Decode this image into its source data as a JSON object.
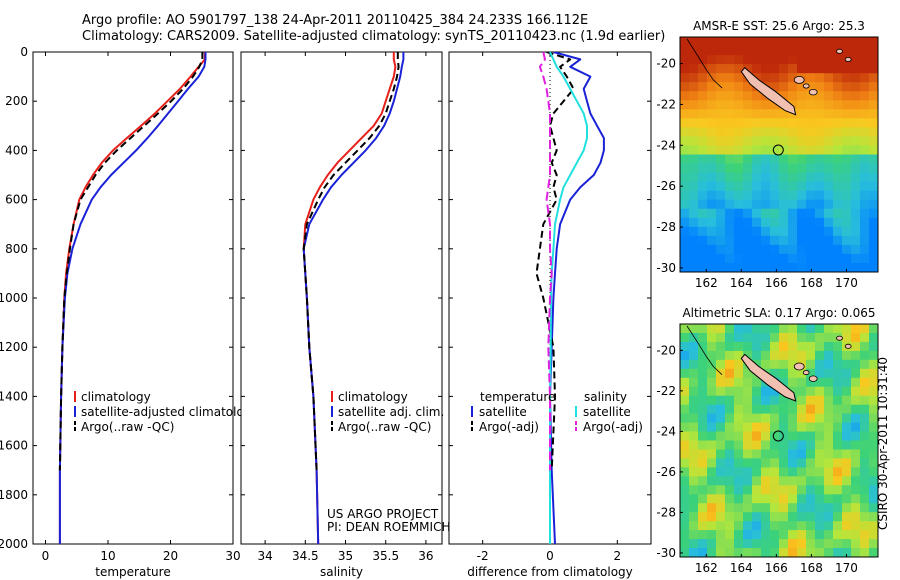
{
  "header": {
    "line1": "Argo profile: AO 5901797_138 24-Apr-2011 20110425_384 24.233S 166.112E",
    "line2": "Climatology: CARS2009. Satellite-adjusted climatology: synTS_20110423.nc (1.9d earlier)"
  },
  "side_note": "CSIRO 30-Apr-2011 10:31:40",
  "credits": {
    "line1": "US ARGO PROJECT",
    "line2": "PI: DEAN ROEMMICH"
  },
  "colors": {
    "climatology": "#e8201a",
    "satellite": "#1a22d8",
    "argo": "#000000",
    "sal_satellite": "#20e0e0",
    "sal_argo": "#e020e0",
    "land": "#f2c0b0"
  },
  "chart_data": [
    {
      "type": "line",
      "xlabel": "temperature",
      "xlim": [
        -2,
        30
      ],
      "ylim": [
        0,
        2000
      ],
      "xticks": [
        0,
        10,
        20,
        30
      ],
      "yticks": [
        0,
        200,
        400,
        600,
        800,
        1000,
        1200,
        1400,
        1600,
        1800,
        2000
      ],
      "legend": [
        "climatology",
        "satellite-adjusted climatology",
        "Argo(..raw -QC)"
      ],
      "series": [
        {
          "name": "climatology",
          "color": "#e8201a",
          "dash": "",
          "x": [
            25.5,
            25.5,
            24.5,
            23.2,
            21.5,
            19.5,
            17.5,
            15.3,
            13,
            10.8,
            9,
            7.6,
            6.4,
            5.4,
            4.5,
            3.8,
            3.3,
            3,
            2.7,
            2.5,
            2.3,
            2.3
          ],
          "y": [
            0,
            30,
            60,
            100,
            150,
            200,
            250,
            300,
            350,
            400,
            450,
            500,
            550,
            600,
            700,
            800,
            900,
            1000,
            1200,
            1400,
            1700,
            2000
          ]
        },
        {
          "name": "satellite-adjusted climatology",
          "color": "#1a22d8",
          "dash": "",
          "x": [
            25.6,
            25.6,
            25.4,
            24.5,
            22.8,
            21.2,
            19.6,
            18,
            16.3,
            14.5,
            12.5,
            10.5,
            8.8,
            7.4,
            5.6,
            4.3,
            3.5,
            3.1,
            2.7,
            2.5,
            2.3,
            2.3
          ],
          "y": [
            0,
            30,
            60,
            100,
            150,
            200,
            250,
            300,
            350,
            400,
            450,
            500,
            550,
            600,
            700,
            800,
            900,
            1000,
            1200,
            1400,
            1700,
            2000
          ]
        },
        {
          "name": "Argo(..raw -QC)",
          "color": "#000000",
          "dash": "7,4",
          "x": [
            25.1,
            25.1,
            24.6,
            23.6,
            22,
            20.1,
            18,
            15.8,
            13.6,
            11.4,
            9.5,
            8,
            6.8,
            5.6,
            4.5,
            3.9,
            3.4,
            3,
            2.7,
            2.5,
            2.3
          ],
          "y": [
            0,
            30,
            60,
            100,
            150,
            200,
            250,
            300,
            350,
            400,
            450,
            500,
            550,
            600,
            700,
            800,
            900,
            1000,
            1200,
            1400,
            1700
          ]
        }
      ]
    },
    {
      "type": "line",
      "xlabel": "salinity",
      "xlim": [
        33.7,
        36.2
      ],
      "ylim": [
        0,
        2000
      ],
      "xticks": [
        34,
        34.5,
        35,
        35.5,
        36
      ],
      "legend": [
        "climatology",
        "satellite adj. clim.",
        "Argo(..raw -QC)"
      ],
      "series": [
        {
          "name": "climatology",
          "color": "#e8201a",
          "dash": "",
          "x": [
            35.6,
            35.6,
            35.62,
            35.6,
            35.55,
            35.5,
            35.45,
            35.35,
            35.2,
            35.05,
            34.9,
            34.78,
            34.68,
            34.6,
            34.5,
            34.48,
            34.5,
            34.52,
            34.55,
            34.6,
            34.64,
            34.66
          ],
          "y": [
            0,
            30,
            60,
            100,
            150,
            200,
            250,
            300,
            350,
            400,
            450,
            500,
            550,
            600,
            700,
            800,
            900,
            1000,
            1200,
            1400,
            1700,
            2000
          ]
        },
        {
          "name": "satellite adj. clim.",
          "color": "#1a22d8",
          "dash": "",
          "x": [
            35.72,
            35.72,
            35.7,
            35.68,
            35.64,
            35.6,
            35.55,
            35.48,
            35.38,
            35.25,
            35.1,
            34.95,
            34.82,
            34.72,
            34.55,
            34.48,
            34.5,
            34.52,
            34.55,
            34.6,
            34.64,
            34.66
          ],
          "y": [
            0,
            30,
            60,
            100,
            150,
            200,
            250,
            300,
            350,
            400,
            450,
            500,
            550,
            600,
            700,
            800,
            900,
            1000,
            1200,
            1400,
            1700,
            2000
          ]
        },
        {
          "name": "Argo(..raw -QC)",
          "color": "#000000",
          "dash": "7,4",
          "x": [
            35.65,
            35.65,
            35.66,
            35.64,
            35.6,
            35.55,
            35.5,
            35.42,
            35.3,
            35.15,
            35,
            34.85,
            34.74,
            34.66,
            34.52,
            34.48,
            34.5,
            34.52,
            34.55,
            34.6,
            34.64
          ],
          "y": [
            0,
            30,
            60,
            100,
            150,
            200,
            250,
            300,
            350,
            400,
            450,
            500,
            550,
            600,
            700,
            800,
            900,
            1000,
            1200,
            1400,
            1700
          ]
        }
      ]
    },
    {
      "type": "line",
      "xlabel": "difference from climatology",
      "xlim": [
        -3,
        3
      ],
      "ylim": [
        0,
        2000
      ],
      "xticks": [
        -2,
        0,
        2
      ],
      "legend": [
        "temperature",
        "satellite",
        "Argo(-adj)",
        "salinity",
        "satellite",
        "Argo(-adj)"
      ],
      "series": [
        {
          "name": "temperature satellite",
          "color": "#1a22d8",
          "dash": "",
          "x": [
            0.1,
            0.9,
            0.6,
            1.2,
            1,
            1.1,
            1.2,
            1.4,
            1.6,
            1.6,
            1.5,
            1.3,
            0.9,
            0.6,
            0.3,
            0.2,
            0.15,
            0.1,
            0.05,
            0,
            0.05,
            0.15
          ],
          "y": [
            0,
            30,
            60,
            100,
            150,
            200,
            250,
            300,
            350,
            400,
            450,
            500,
            550,
            600,
            700,
            800,
            900,
            1000,
            1200,
            1400,
            1700,
            2000
          ]
        },
        {
          "name": "temperature Argo(-adj)",
          "color": "#000000",
          "dash": "7,4",
          "x": [
            -0.1,
            0.6,
            0.3,
            0.5,
            0.7,
            0.4,
            0.1,
            0,
            0.1,
            0.2,
            0.05,
            0.2,
            0.1,
            0.2,
            -0.2,
            -0.3,
            -0.4,
            -0.2,
            0.1,
            0.15,
            0.05
          ],
          "y": [
            0,
            30,
            60,
            100,
            150,
            200,
            250,
            300,
            350,
            400,
            450,
            500,
            550,
            600,
            700,
            800,
            900,
            1000,
            1200,
            1400,
            1700
          ]
        },
        {
          "name": "salinity satellite",
          "color": "#20e0e0",
          "dash": "",
          "x": [
            0,
            0.1,
            0.2,
            0.4,
            0.6,
            0.8,
            1,
            1.1,
            1.1,
            1,
            0.8,
            0.6,
            0.4,
            0.3,
            0.15,
            0.1,
            0.05,
            0.03,
            0.02,
            0,
            0,
            0
          ],
          "y": [
            0,
            30,
            60,
            100,
            150,
            200,
            250,
            300,
            350,
            400,
            450,
            500,
            550,
            600,
            700,
            800,
            900,
            1000,
            1200,
            1400,
            1700,
            2000
          ]
        },
        {
          "name": "salinity Argo(-adj)",
          "color": "#e020e0",
          "dash": "9,4",
          "x": [
            -0.2,
            -0.15,
            -0.3,
            -0.2,
            -0.1,
            -0.05,
            0,
            0,
            0,
            0,
            0,
            0,
            -0.05,
            -0.1,
            0,
            0,
            0.05,
            0,
            -0.05,
            0,
            0
          ],
          "y": [
            0,
            30,
            60,
            100,
            150,
            200,
            250,
            300,
            350,
            400,
            450,
            500,
            550,
            600,
            700,
            800,
            900,
            1000,
            1200,
            1400,
            1700
          ]
        }
      ]
    },
    {
      "type": "heatmap",
      "title": "AMSR-E SST: 25.6 Argo: 25.3",
      "xlim": [
        160.5,
        171.8
      ],
      "ylim": [
        -30.2,
        -18.7
      ],
      "xticks": [
        162,
        164,
        166,
        168,
        170
      ],
      "yticks": [
        -20,
        -22,
        -24,
        -26,
        -28,
        -30
      ],
      "marker": {
        "lon": 166.11,
        "lat": -24.23
      }
    },
    {
      "type": "heatmap",
      "title": "Altimetric SLA: 0.17 Argo: 0.065",
      "xlim": [
        160.5,
        171.8
      ],
      "ylim": [
        -30.2,
        -18.7
      ],
      "xticks": [
        162,
        164,
        166,
        168,
        170
      ],
      "yticks": [
        -20,
        -22,
        -24,
        -26,
        -28,
        -30
      ],
      "marker": {
        "lon": 166.11,
        "lat": -24.23
      }
    }
  ]
}
